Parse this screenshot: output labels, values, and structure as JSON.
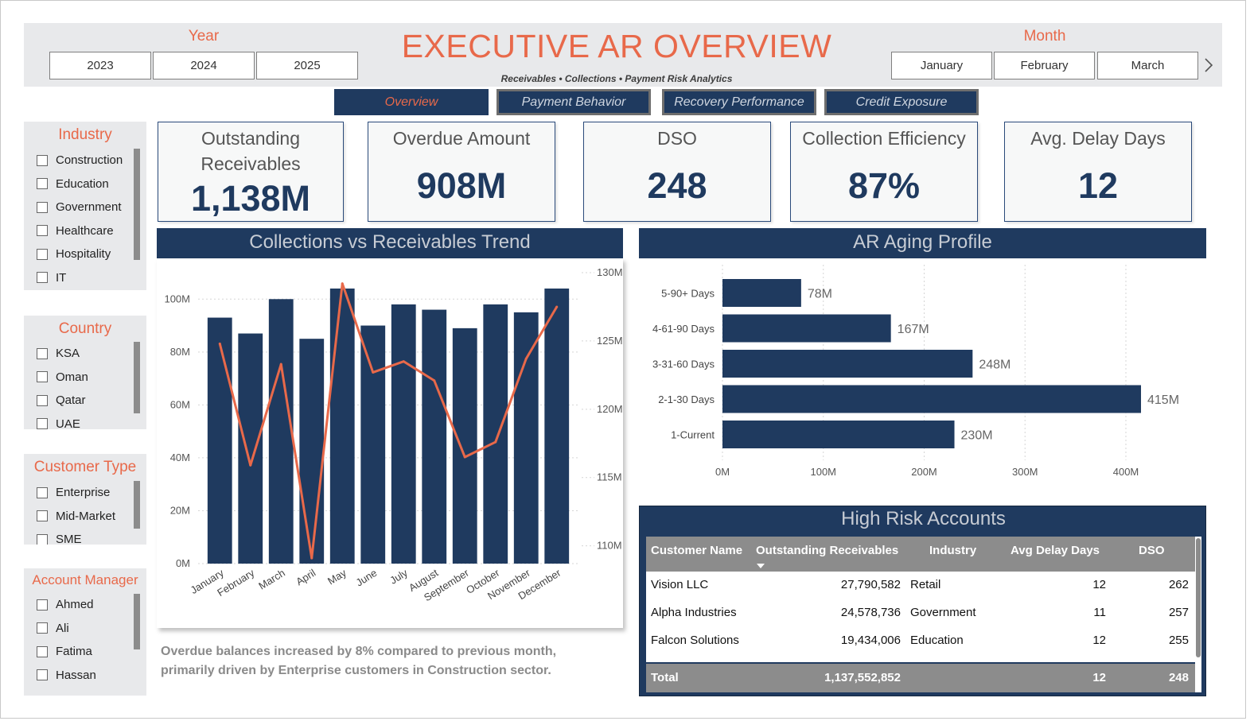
{
  "header": {
    "title": "EXECUTIVE AR OVERVIEW",
    "subtitle": "Receivables • Collections • Payment Risk Analytics",
    "year_label": "Year",
    "years": [
      "2023",
      "2024",
      "2025"
    ],
    "month_label": "Month",
    "months": [
      "January",
      "February",
      "March"
    ],
    "next_icon": "chevron-right-icon"
  },
  "nav": {
    "tabs": [
      {
        "label": "Overview",
        "active": true
      },
      {
        "label": "Payment Behavior",
        "active": false
      },
      {
        "label": "Recovery Performance",
        "active": false
      },
      {
        "label": "Credit Exposure",
        "active": false
      }
    ]
  },
  "slicers": {
    "industry": {
      "title": "Industry",
      "items": [
        "Construction",
        "Education",
        "Government",
        "Healthcare",
        "Hospitality",
        "IT"
      ]
    },
    "country": {
      "title": "Country",
      "items": [
        "KSA",
        "Oman",
        "Qatar",
        "UAE"
      ]
    },
    "customer_type": {
      "title": "Customer Type",
      "items": [
        "Enterprise",
        "Mid-Market",
        "SME"
      ]
    },
    "account_manager": {
      "title": "Account Manager",
      "items": [
        "Ahmed",
        "Ali",
        "Fatima",
        "Hassan"
      ]
    }
  },
  "kpis": [
    {
      "label": "Outstanding Receivables",
      "value": "1,138M"
    },
    {
      "label": "Overdue Amount",
      "value": "908M"
    },
    {
      "label": "DSO",
      "value": "248"
    },
    {
      "label": "Collection Efficiency",
      "value": "87%"
    },
    {
      "label": "Avg. Delay Days",
      "value": "12"
    }
  ],
  "trend_panel": {
    "title": "Collections vs Receivables Trend"
  },
  "aging_panel": {
    "title": "AR Aging Profile"
  },
  "note": "Overdue balances increased by 8% compared to previous month, primarily driven by Enterprise customers in Construction sector.",
  "chart_data": [
    {
      "type": "bar",
      "title": "Collections vs Receivables Trend",
      "categories": [
        "January",
        "February",
        "March",
        "April",
        "May",
        "June",
        "July",
        "August",
        "September",
        "October",
        "November",
        "December"
      ],
      "series": [
        {
          "values": [
            93,
            87,
            100,
            85,
            104,
            90,
            98,
            96,
            89,
            98,
            95,
            104
          ]
        },
        {
          "type": "line",
          "axis": "right",
          "values": [
            124.8,
            115.9,
            123.3,
            109.1,
            129.2,
            122.7,
            123.5,
            122.1,
            116.5,
            117.6,
            123.7,
            127.5
          ]
        }
      ],
      "left_axis": {
        "ticks": [
          "0M",
          "20M",
          "40M",
          "60M",
          "80M",
          "100M"
        ],
        "ylim": [
          0,
          110
        ]
      },
      "right_axis": {
        "ticks": [
          "110M",
          "115M",
          "120M",
          "125M",
          "130M"
        ],
        "ylim": [
          108.7,
          130
        ]
      },
      "grid": true,
      "colors": {
        "bar": "#1f3a5f",
        "line": "#e8694a"
      }
    },
    {
      "type": "bar",
      "orientation": "horizontal",
      "title": "AR Aging Profile",
      "categories": [
        "5-90+ Days",
        "4-61-90 Days",
        "3-31-60 Days",
        "2-1-30 Days",
        "1-Current"
      ],
      "values": [
        78,
        167,
        248,
        415,
        230
      ],
      "data_labels": [
        "78M",
        "167M",
        "248M",
        "415M",
        "230M"
      ],
      "x_ticks": [
        "0M",
        "100M",
        "200M",
        "300M",
        "400M"
      ],
      "xlim": [
        0,
        400
      ],
      "grid": true,
      "colors": {
        "bar": "#1f3a5f"
      }
    }
  ],
  "risk_table": {
    "title": "High Risk Accounts",
    "columns": [
      "Customer Name",
      "Outstanding Receivables",
      "Industry",
      "Avg Delay Days",
      "DSO"
    ],
    "rows": [
      [
        "Vision LLC",
        "27,790,582",
        "Retail",
        "12",
        "262"
      ],
      [
        "Alpha Industries",
        "24,578,736",
        "Government",
        "11",
        "257"
      ],
      [
        "Falcon Solutions",
        "19,434,006",
        "Education",
        "12",
        "255"
      ]
    ],
    "total": [
      "Total",
      "1,137,552,852",
      "",
      "12",
      "248"
    ],
    "sort_icon": "sort-desc-icon"
  }
}
